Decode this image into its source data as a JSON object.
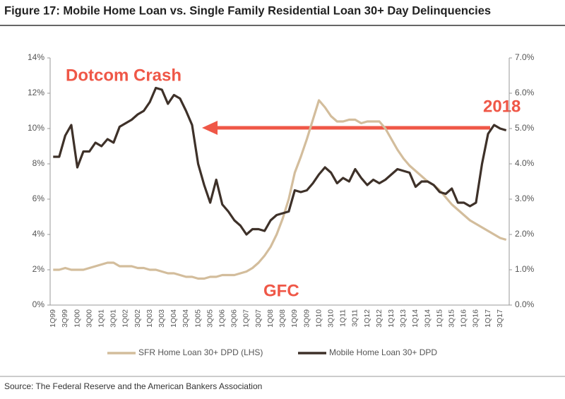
{
  "chart_data": {
    "type": "line",
    "title": "Figure 17: Mobile Home Loan vs. Single Family Residential Loan 30+ Day Delinquencies",
    "source": "Source:  The Federal Reserve and the American Bankers Association",
    "annotations": [
      "Dotcom Crash",
      "2018",
      "GFC"
    ],
    "categories": [
      "1Q99",
      null,
      "3Q99",
      null,
      "1Q00",
      null,
      "3Q00",
      null,
      "1Q01",
      null,
      "3Q01",
      null,
      "1Q02",
      null,
      "3Q02",
      null,
      "1Q03",
      null,
      "3Q03",
      null,
      "1Q04",
      null,
      "3Q04",
      null,
      "1Q05",
      null,
      "3Q05",
      null,
      "1Q06",
      null,
      "3Q06",
      null,
      "1Q07",
      null,
      "3Q07",
      null,
      "1Q08",
      null,
      "3Q08",
      null,
      "1Q09",
      null,
      "3Q09",
      null,
      "1Q10",
      null,
      "3Q10",
      null,
      "1Q11",
      null,
      "3Q11",
      null,
      "1Q12",
      null,
      "3Q12",
      null,
      "1Q13",
      null,
      "3Q13",
      null,
      "1Q14",
      null,
      "3Q14",
      null,
      "1Q15",
      null,
      "3Q15",
      null,
      "1Q16",
      null,
      "3Q16",
      null,
      "1Q17",
      null,
      "3Q17",
      null
    ],
    "series": [
      {
        "name": "SFR Home Loan 30+ DPD (LHS)",
        "color": "#d3bd9c",
        "axis": "y",
        "values": [
          2.0,
          2.0,
          2.1,
          2.0,
          2.0,
          2.0,
          2.1,
          2.2,
          2.3,
          2.4,
          2.4,
          2.2,
          2.2,
          2.2,
          2.1,
          2.1,
          2.0,
          2.0,
          1.9,
          1.8,
          1.8,
          1.7,
          1.6,
          1.6,
          1.5,
          1.5,
          1.6,
          1.6,
          1.7,
          1.7,
          1.7,
          1.8,
          1.9,
          2.1,
          2.4,
          2.8,
          3.3,
          4.0,
          4.9,
          6.0,
          7.5,
          8.4,
          9.4,
          10.5,
          11.6,
          11.2,
          10.7,
          10.4,
          10.4,
          10.5,
          10.5,
          10.3,
          10.4,
          10.4,
          10.4,
          10.0,
          9.4,
          8.8,
          8.3,
          7.9,
          7.6,
          7.3,
          7.0,
          6.8,
          6.5,
          6.1,
          5.7,
          5.4,
          5.1,
          4.8,
          4.6,
          4.4,
          4.2,
          4.0,
          3.8,
          3.7
        ]
      },
      {
        "name": "Mobile Home Loan 30+ DPD",
        "color": "#3e3129",
        "axis": "y2",
        "values": [
          4.2,
          4.2,
          4.8,
          5.1,
          3.9,
          4.35,
          4.35,
          4.6,
          4.5,
          4.7,
          4.6,
          5.05,
          5.15,
          5.25,
          5.4,
          5.5,
          5.75,
          6.15,
          6.1,
          5.7,
          5.95,
          5.85,
          5.5,
          5.1,
          4.0,
          3.4,
          2.9,
          3.55,
          2.85,
          2.65,
          2.4,
          2.25,
          2.0,
          2.15,
          2.15,
          2.1,
          2.4,
          2.55,
          2.6,
          2.65,
          3.25,
          3.2,
          3.25,
          3.45,
          3.7,
          3.9,
          3.75,
          3.45,
          3.6,
          3.5,
          3.85,
          3.6,
          3.4,
          3.55,
          3.45,
          3.55,
          3.7,
          3.85,
          3.8,
          3.75,
          3.35,
          3.5,
          3.5,
          3.4,
          3.2,
          3.15,
          3.3,
          2.9,
          2.9,
          2.8,
          2.9,
          4.0,
          4.85,
          5.1,
          5.0,
          4.95
        ]
      }
    ],
    "ylim": [
      0,
      14
    ],
    "yticks": [
      {
        "value": 0,
        "label": "0%"
      },
      {
        "value": 2,
        "label": "2%"
      },
      {
        "value": 4,
        "label": "4%"
      },
      {
        "value": 6,
        "label": "6%"
      },
      {
        "value": 8,
        "label": "8%"
      },
      {
        "value": 10,
        "label": "10%"
      },
      {
        "value": 12,
        "label": "12%"
      },
      {
        "value": 14,
        "label": "14%"
      }
    ],
    "y2lim": [
      0,
      7
    ],
    "y2ticks": [
      {
        "value": 0,
        "label": "0.0%"
      },
      {
        "value": 1,
        "label": "1.0%"
      },
      {
        "value": 2,
        "label": "2.0%"
      },
      {
        "value": 3,
        "label": "3.0%"
      },
      {
        "value": 4,
        "label": "4.0%"
      },
      {
        "value": 5,
        "label": "5.0%"
      },
      {
        "value": 6,
        "label": "6.0%"
      },
      {
        "value": 7,
        "label": "7.0%"
      }
    ]
  }
}
